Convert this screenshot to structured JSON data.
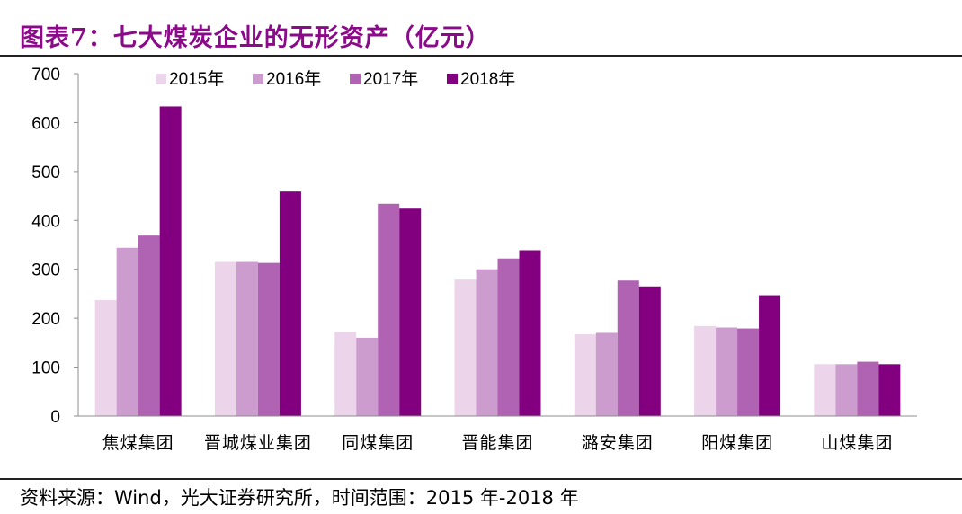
{
  "title": "图表7：七大煤炭企业的无形资产（亿元）",
  "source": "资料来源：Wind，光大证券研究所，时间范围：2015 年-2018 年",
  "chart_data": {
    "type": "bar",
    "categories": [
      "焦煤集团",
      "晋城煤业集团",
      "同煤集团",
      "晋能集团",
      "潞安集团",
      "阳煤集团",
      "山煤集团"
    ],
    "series": [
      {
        "name": "2015年",
        "color": "#ecd5ea",
        "values": [
          237,
          315,
          172,
          279,
          167,
          184,
          106
        ]
      },
      {
        "name": "2016年",
        "color": "#cd9ccf",
        "values": [
          344,
          315,
          160,
          300,
          170,
          181,
          106
        ]
      },
      {
        "name": "2017年",
        "color": "#b062b3",
        "values": [
          369,
          313,
          434,
          322,
          277,
          179,
          111
        ]
      },
      {
        "name": "2018年",
        "color": "#82007f",
        "values": [
          633,
          459,
          424,
          339,
          265,
          247,
          106
        ]
      }
    ],
    "yticks": [
      "0",
      "100",
      "200",
      "300",
      "400",
      "500",
      "600",
      "700"
    ],
    "ylim": [
      0,
      700
    ],
    "grid": false,
    "legend_position": "top-left"
  }
}
